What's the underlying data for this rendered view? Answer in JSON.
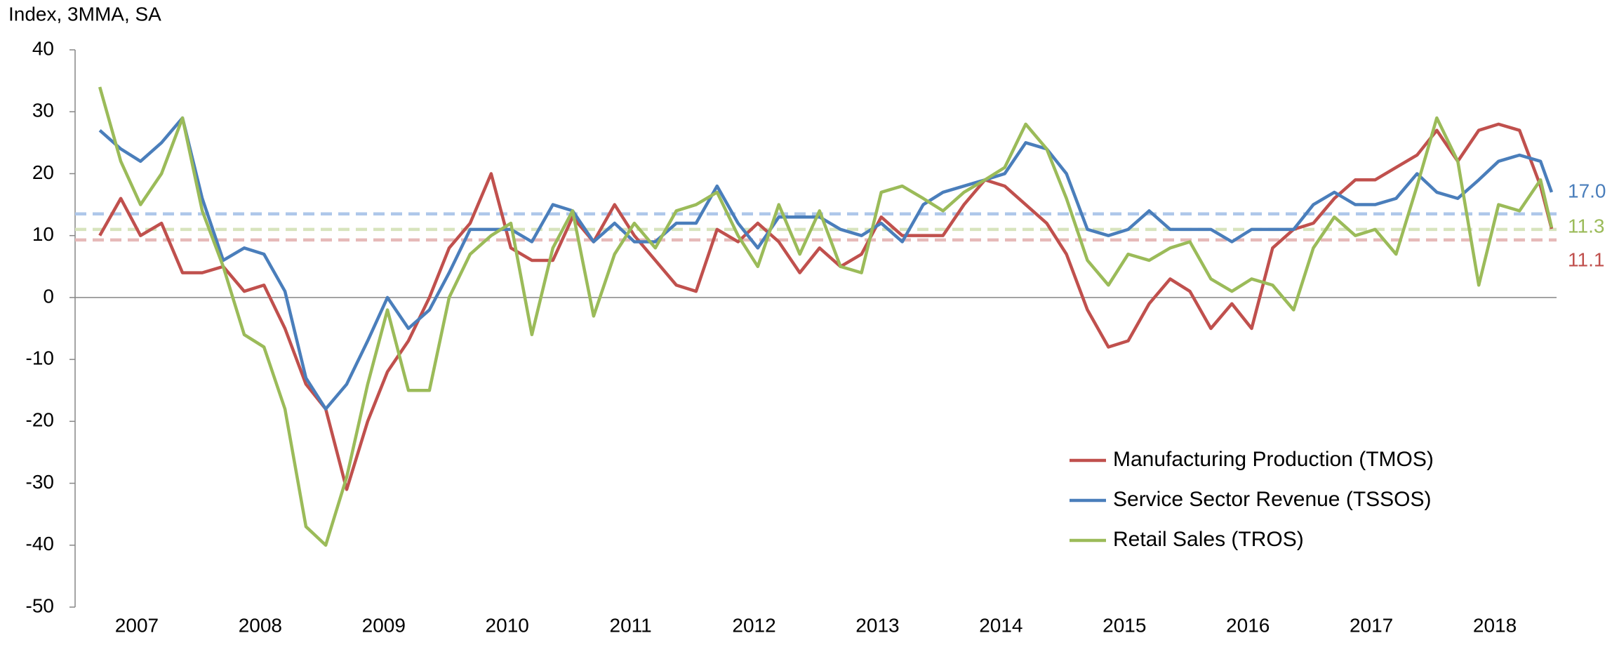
{
  "chart_data": {
    "type": "line",
    "y_axis_title": "Index, 3MMA, SA",
    "x": [
      2007.2,
      2007.37,
      2007.53,
      2007.7,
      2007.87,
      2008.03,
      2008.2,
      2008.37,
      2008.53,
      2008.7,
      2008.87,
      2009.03,
      2009.2,
      2009.37,
      2009.53,
      2009.7,
      2009.87,
      2010.03,
      2010.2,
      2010.37,
      2010.53,
      2010.7,
      2010.87,
      2011.03,
      2011.2,
      2011.37,
      2011.53,
      2011.7,
      2011.87,
      2012.03,
      2012.2,
      2012.37,
      2012.53,
      2012.7,
      2012.87,
      2013.03,
      2013.2,
      2013.37,
      2013.53,
      2013.7,
      2013.87,
      2014.03,
      2014.2,
      2014.37,
      2014.53,
      2014.7,
      2014.87,
      2015.03,
      2015.2,
      2015.37,
      2015.53,
      2015.7,
      2015.87,
      2016.03,
      2016.2,
      2016.37,
      2016.53,
      2016.7,
      2016.87,
      2017.03,
      2017.2,
      2017.37,
      2017.53,
      2017.7,
      2017.87,
      2018.03,
      2018.2,
      2018.37,
      2018.53,
      2018.7,
      2018.87,
      2018.96
    ],
    "series": [
      {
        "name": "Manufacturing Production (TMOS)",
        "color": "#c0504d",
        "values": [
          10,
          16,
          10,
          12,
          4,
          4,
          5,
          1,
          2,
          -5,
          -14,
          -18,
          -31,
          -20,
          -12,
          -7,
          0,
          8,
          12,
          20,
          8,
          6,
          6,
          13,
          9,
          15,
          10,
          6,
          2,
          1,
          11,
          9,
          12,
          9,
          4,
          8,
          5,
          7,
          13,
          10,
          10,
          10,
          15,
          19,
          18,
          15,
          12,
          7,
          -2,
          -8,
          -7,
          -1,
          3,
          1,
          -5,
          -1,
          -5,
          8,
          11,
          12,
          16,
          19,
          19,
          21,
          23,
          27,
          22,
          27,
          28,
          27,
          18,
          11.1
        ],
        "value_labels": [
          null,
          null,
          null,
          null,
          null,
          null,
          null,
          null,
          null,
          null,
          null,
          null,
          null,
          null,
          null,
          null,
          null,
          null,
          null,
          null,
          null,
          null,
          null,
          null,
          null,
          null,
          null,
          null,
          null,
          null,
          null,
          null,
          null,
          null,
          null,
          null,
          null,
          null,
          null,
          null,
          null,
          null,
          null,
          null,
          null,
          null,
          null,
          null,
          null,
          null,
          null,
          null,
          null,
          null,
          null,
          null,
          null,
          null,
          null,
          null,
          null,
          null,
          null,
          null,
          null,
          null,
          null,
          null,
          null,
          null,
          null,
          "11.1"
        ]
      },
      {
        "name": "Service Sector Revenue (TSSOS)",
        "color": "#4a7ebb",
        "values": [
          27,
          24,
          22,
          25,
          29,
          16,
          6,
          8,
          7,
          1,
          -13,
          -18,
          -14,
          -7,
          0,
          -5,
          -2,
          4,
          11,
          11,
          11,
          9,
          15,
          14,
          9,
          12,
          9,
          9,
          12,
          12,
          18,
          12,
          8,
          13,
          13,
          13,
          11,
          10,
          12,
          9,
          15,
          17,
          18,
          19,
          20,
          25,
          24,
          20,
          11,
          10,
          11,
          14,
          11,
          11,
          11,
          9,
          11,
          11,
          11,
          15,
          17,
          15,
          15,
          16,
          20,
          17,
          16,
          19,
          22,
          23,
          22,
          17
        ],
        "value_labels": [
          null,
          null,
          null,
          null,
          null,
          null,
          null,
          null,
          null,
          null,
          null,
          null,
          null,
          null,
          null,
          null,
          null,
          null,
          null,
          null,
          null,
          null,
          null,
          null,
          null,
          null,
          null,
          null,
          null,
          null,
          null,
          null,
          null,
          null,
          null,
          null,
          null,
          null,
          null,
          null,
          null,
          null,
          null,
          null,
          null,
          null,
          null,
          null,
          null,
          null,
          null,
          null,
          null,
          null,
          null,
          null,
          null,
          null,
          null,
          null,
          null,
          null,
          null,
          null,
          null,
          null,
          null,
          null,
          null,
          null,
          null,
          "17.0"
        ]
      },
      {
        "name": "Retail Sales (TROS)",
        "color": "#9bbb59",
        "values": [
          34,
          22,
          15,
          20,
          29,
          14,
          5,
          -6,
          -8,
          -18,
          -37,
          -40,
          -29,
          -14,
          -2,
          -15,
          -15,
          0,
          7,
          10,
          12,
          -6,
          8,
          14,
          -3,
          7,
          12,
          8,
          14,
          15,
          17,
          10,
          5,
          15,
          7,
          14,
          5,
          4,
          17,
          18,
          16,
          14,
          17,
          19,
          21,
          28,
          24,
          16,
          6,
          2,
          7,
          6,
          8,
          9,
          3,
          1,
          3,
          2,
          -2,
          8,
          13,
          10,
          11,
          7,
          18,
          29,
          22,
          2,
          15,
          14,
          19,
          11.3
        ],
        "value_labels": [
          null,
          null,
          null,
          null,
          null,
          null,
          null,
          null,
          null,
          null,
          null,
          null,
          null,
          null,
          null,
          null,
          null,
          null,
          null,
          null,
          null,
          null,
          null,
          null,
          null,
          null,
          null,
          null,
          null,
          null,
          null,
          null,
          null,
          null,
          null,
          null,
          null,
          null,
          null,
          null,
          null,
          null,
          null,
          null,
          null,
          null,
          null,
          null,
          null,
          null,
          null,
          null,
          null,
          null,
          null,
          null,
          null,
          null,
          null,
          null,
          null,
          null,
          null,
          null,
          null,
          null,
          null,
          null,
          null,
          null,
          null,
          "11.3"
        ]
      }
    ],
    "reference_lines": [
      {
        "value": 13.5,
        "color": "#aec7ea"
      },
      {
        "value": 11,
        "color": "#d7e4bd"
      },
      {
        "value": 9.3,
        "color": "#e6b9b8"
      }
    ],
    "xlim": [
      2007,
      2019
    ],
    "xticks": [
      {
        "value": 2007.5,
        "label": "2007"
      },
      {
        "value": 2008.5,
        "label": "2008"
      },
      {
        "value": 2009.5,
        "label": "2009"
      },
      {
        "value": 2010.5,
        "label": "2010"
      },
      {
        "value": 2011.5,
        "label": "2011"
      },
      {
        "value": 2012.5,
        "label": "2012"
      },
      {
        "value": 2013.5,
        "label": "2013"
      },
      {
        "value": 2014.5,
        "label": "2014"
      },
      {
        "value": 2015.5,
        "label": "2015"
      },
      {
        "value": 2016.5,
        "label": "2016"
      },
      {
        "value": 2017.5,
        "label": "2017"
      },
      {
        "value": 2018.5,
        "label": "2018"
      }
    ],
    "ylim": [
      -50,
      40
    ],
    "yticks": [
      40,
      30,
      20,
      10,
      0,
      -10,
      -20,
      -30,
      -40,
      -50
    ],
    "grid": false,
    "legend": "lower right"
  }
}
